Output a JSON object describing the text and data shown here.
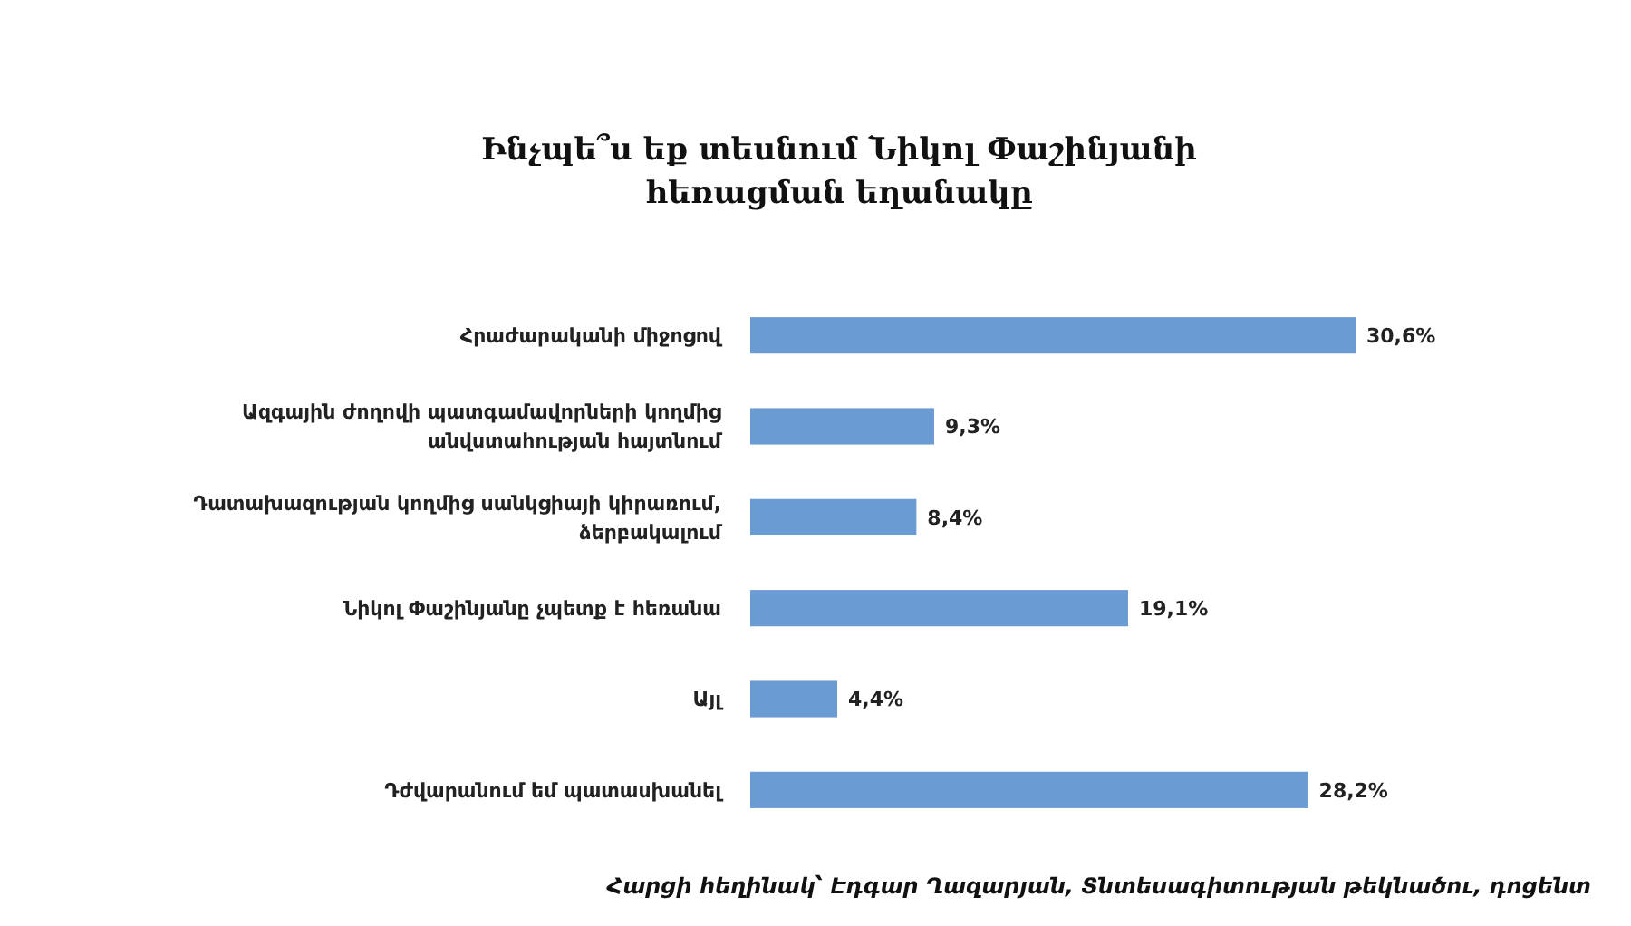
{
  "chart_data": {
    "type": "bar",
    "orientation": "horizontal",
    "title": "Ինչպե՞ս եք տեսնում Նիկոլ Փաշինյանի հեռացման եղանակը",
    "categories": [
      "Հրաժարականի միջոցով",
      "Ազգային ժողովի պատգամավորների կողմից անվստահության հայտնում",
      "Դատախազության կողմից սանկցիայի կիրառում, ձերբակալում",
      "Նիկոլ Փաշինյանը չպետք է հեռանա",
      "Այլ",
      "Դժվարանում եմ պատասխանել"
    ],
    "values": [
      30.6,
      9.3,
      8.4,
      19.1,
      4.4,
      28.2
    ],
    "value_labels": [
      "30,6%",
      "9,3%",
      "8,4%",
      "19,1%",
      "4,4%",
      "28,2%"
    ],
    "color": "#6a9bd3",
    "annotations": [
      "Հարցի հեղինակ՝ Էդգար Ղազարյան, Տնտեսագիտության թեկնածու, դոցենտ"
    ]
  }
}
